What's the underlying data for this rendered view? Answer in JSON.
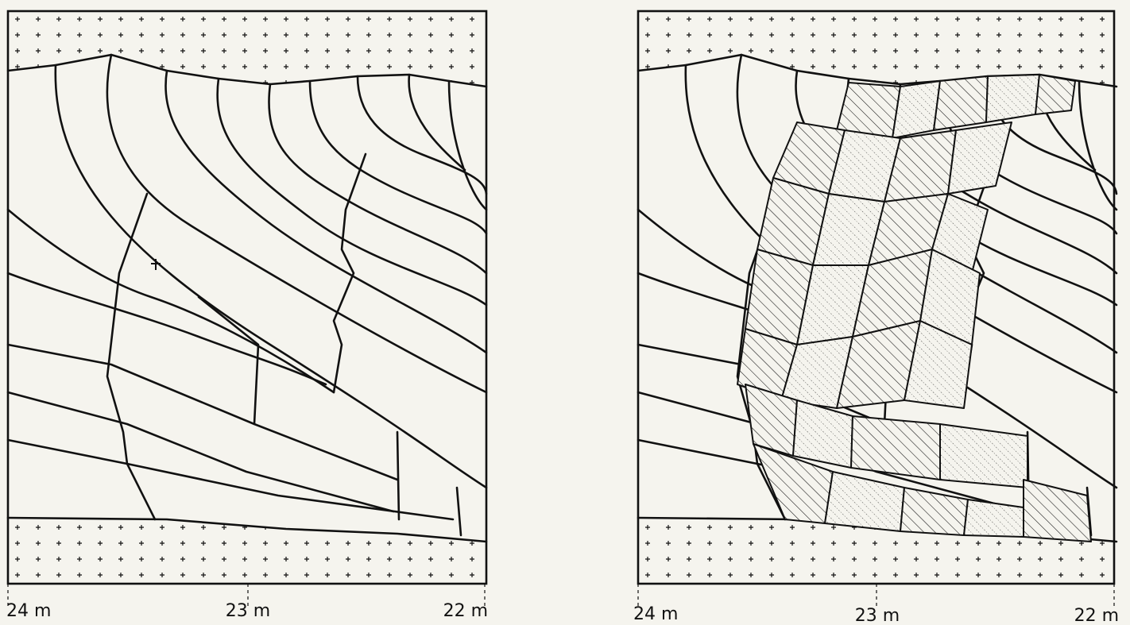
{
  "panels": [
    {
      "scale_labels": [
        "24 m",
        "23 m",
        "22 m"
      ]
    },
    {
      "scale_labels": [
        "24 m",
        "23 m",
        "22 m"
      ]
    }
  ]
}
